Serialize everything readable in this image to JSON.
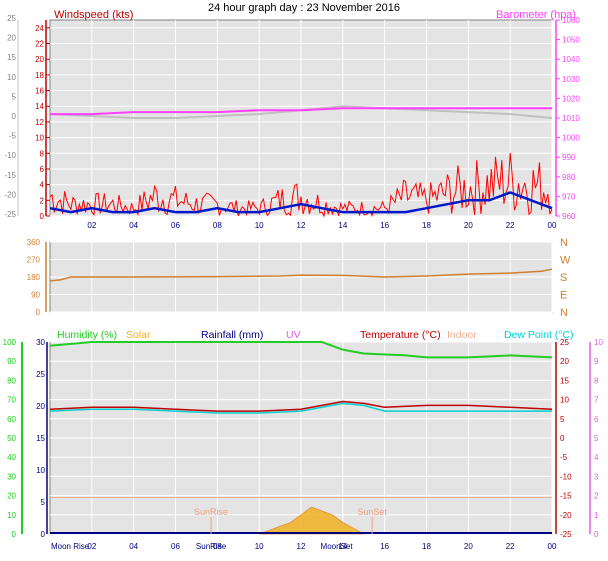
{
  "page_title": "24 hour graph day : 23 November 2016",
  "colors": {
    "wind_avg": "#0018c8",
    "wind_gust": "#ff0000",
    "barometer": "#ff40ff",
    "baro_trend": "#c0c0c0",
    "direction": "#d08030",
    "humidity": "#22cc22",
    "solar": "#f0b020",
    "rainfall": "#000080",
    "uv": "#e060e0",
    "temperature": "#c00000",
    "indoor": "#f0b090",
    "dew_point": "#00d0d0",
    "apparent": "#a0a0ff",
    "plot_bg": "#e4e4e4",
    "grid": "#ffffff"
  },
  "time_ticks": [
    "02",
    "04",
    "06",
    "08",
    "10",
    "12",
    "14",
    "16",
    "18",
    "20",
    "22",
    "00"
  ],
  "chart_data": [
    {
      "type": "line",
      "name": "wind-barometer",
      "x_hours": [
        0,
        24
      ],
      "series": [
        {
          "name": "Windspeed (kts)",
          "axis": "left",
          "ylim": [
            0,
            25
          ]
        },
        {
          "name": "Barometer (hpa)",
          "axis": "right",
          "ylim": [
            960,
            1060
          ]
        }
      ],
      "left_label": "Windspeed (kts)",
      "right_label": "Barometer (hpa)",
      "left_ticks": [
        "0",
        "2",
        "4",
        "6",
        "8",
        "10",
        "12",
        "14",
        "16",
        "18",
        "20",
        "22",
        "24"
      ],
      "left_outer_ticks": [
        "-25",
        "-20",
        "-15",
        "-10",
        "-5",
        "0",
        "5",
        "10",
        "15",
        "20",
        "25"
      ],
      "right_ticks": [
        "960",
        "970",
        "980",
        "990",
        "1000",
        "1010",
        "1020",
        "1030",
        "1040",
        "1050",
        "1060"
      ],
      "baro": {
        "x": [
          0,
          2,
          4,
          6,
          8,
          10,
          12,
          14,
          16,
          18,
          20,
          22,
          24
        ],
        "y": [
          1012,
          1012,
          1013,
          1013,
          1013,
          1014,
          1014,
          1015,
          1015,
          1015,
          1015,
          1015,
          1015
        ]
      },
      "baro_trend": {
        "x": [
          0,
          2,
          4,
          6,
          8,
          10,
          12,
          14,
          16,
          18,
          20,
          22,
          24
        ],
        "y": [
          1012,
          1011,
          1010,
          1010,
          1011,
          1012,
          1014,
          1016,
          1015,
          1014,
          1013,
          1012,
          1010
        ]
      },
      "wind_avg": {
        "x": [
          0,
          1,
          2,
          3,
          4,
          5,
          6,
          7,
          8,
          9,
          10,
          11,
          12,
          13,
          14,
          15,
          16,
          17,
          18,
          19,
          20,
          21,
          22,
          23,
          24
        ],
        "y": [
          1,
          0.5,
          1,
          0.5,
          0.5,
          1,
          0.5,
          0.5,
          1,
          0.5,
          0.5,
          1,
          1.5,
          1,
          0.5,
          0.5,
          0.5,
          0.5,
          1,
          1.5,
          2,
          2,
          3,
          2,
          1
        ]
      },
      "wind_gust_max": {
        "x": [
          0,
          1,
          2,
          3,
          4,
          5,
          6,
          7,
          8,
          9,
          10,
          11,
          12,
          13,
          14,
          15,
          16,
          17,
          18,
          19,
          20,
          21,
          22,
          23,
          24
        ],
        "y": [
          5,
          3,
          3,
          3,
          2,
          5,
          4,
          3,
          3,
          2,
          2,
          4,
          5,
          3,
          2,
          2,
          2,
          5,
          4,
          6,
          7,
          8,
          9,
          8,
          7
        ]
      }
    },
    {
      "type": "line",
      "name": "wind-direction",
      "x_hours": [
        0,
        24
      ],
      "left_ticks": [
        "0",
        "90",
        "180",
        "270",
        "360"
      ],
      "right_ticks": [
        "N",
        "W",
        "S",
        "E",
        "N"
      ],
      "series": [
        {
          "name": "Direction",
          "x": [
            0,
            0.5,
            1,
            4,
            8,
            11,
            12,
            14,
            16,
            18,
            20,
            22,
            23.5,
            24
          ],
          "y": [
            160,
            165,
            180,
            180,
            182,
            185,
            190,
            188,
            180,
            185,
            195,
            200,
            210,
            220
          ]
        }
      ]
    },
    {
      "type": "line",
      "name": "temperature-humidity",
      "x_hours": [
        0,
        24
      ],
      "legend": [
        "Humidity (%)",
        "Solar",
        "Rainfall (mm)",
        "UV",
        "Temperature (°C)",
        "Indoor",
        "Dew Point (°C)"
      ],
      "humidity_ticks": [
        "0",
        "10",
        "20",
        "30",
        "40",
        "50",
        "60",
        "70",
        "80",
        "90",
        "100"
      ],
      "rain_ticks": [
        "0",
        "5",
        "10",
        "15",
        "20",
        "25",
        "30"
      ],
      "temp_ticks": [
        "-25",
        "-20",
        "-15",
        "-10",
        "-5",
        "0",
        "5",
        "10",
        "15",
        "20",
        "25"
      ],
      "uv_ticks": [
        "0",
        "1",
        "2",
        "3",
        "4",
        "5",
        "6",
        "7",
        "8",
        "9",
        "10"
      ],
      "humidity": {
        "x": [
          0,
          1,
          2,
          4,
          6,
          8,
          10,
          12,
          13,
          14,
          15,
          17,
          18,
          20,
          22,
          24
        ],
        "y": [
          98,
          99,
          100,
          100,
          100,
          100,
          100,
          100,
          100,
          96,
          94,
          93,
          92,
          92,
          93,
          92
        ]
      },
      "indoor": {
        "x": [
          0,
          24
        ],
        "y": [
          19,
          19
        ]
      },
      "temperature": {
        "x": [
          0,
          2,
          4,
          6,
          8,
          10,
          12,
          13,
          14,
          15,
          16,
          18,
          20,
          22,
          24
        ],
        "y": [
          7.5,
          8,
          8,
          7.5,
          7,
          7,
          7.5,
          8.5,
          9.5,
          9,
          8,
          8.5,
          8.5,
          8,
          7.5
        ]
      },
      "dew_point": {
        "x": [
          0,
          2,
          4,
          6,
          8,
          10,
          12,
          13,
          14,
          15,
          16,
          18,
          20,
          22,
          24
        ],
        "y": [
          7,
          7.5,
          7.5,
          7,
          6.5,
          6.5,
          7,
          8,
          9,
          8.5,
          7,
          7,
          7,
          7,
          7
        ]
      },
      "solar": {
        "x": [
          10,
          10.5,
          11,
          11.5,
          12,
          12.5,
          13,
          13.5,
          14,
          14.5,
          15
        ],
        "y": [
          0,
          2,
          4,
          6,
          10,
          14,
          12,
          10,
          6,
          3,
          0
        ]
      },
      "sun_rise": "SunRise",
      "sun_set": "SunSet",
      "moon_rise": "Moon Rise",
      "moon_set": "MoonSet",
      "sun_rise_hour": 7.7,
      "sun_set_hour": 15.4,
      "moon_rise_hour": 0.1,
      "moon_set_hour": 13.7
    }
  ]
}
